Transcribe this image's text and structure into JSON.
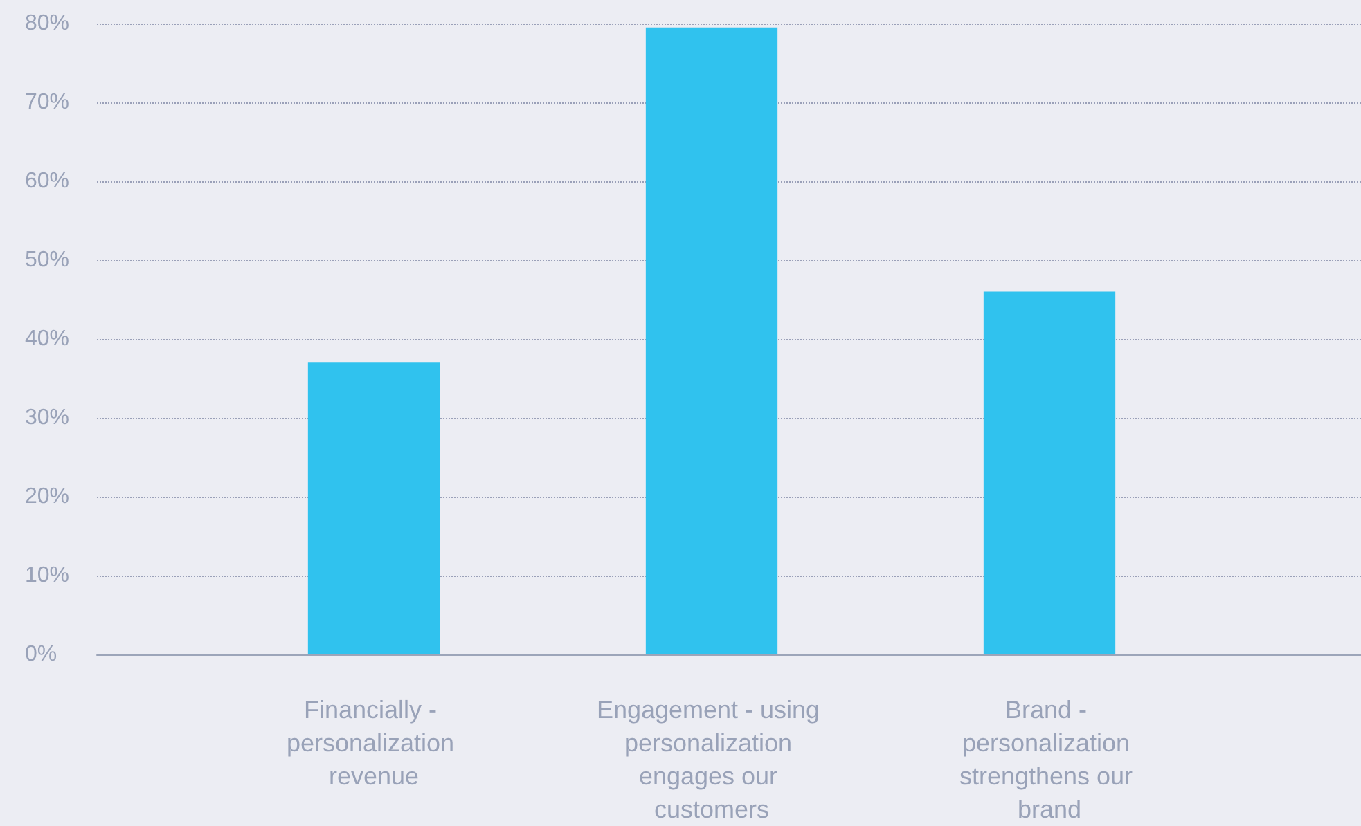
{
  "chart_data": {
    "type": "bar",
    "categories": [
      "Financially - personalization revenue",
      "Engagement - using personalization engages our customers",
      "Brand - personalization strengthens our brand"
    ],
    "values": [
      37,
      79.5,
      46
    ],
    "color": "#30c2ee",
    "ylim": [
      0,
      80
    ],
    "yticks": [
      {
        "value": 0,
        "label": "0%"
      },
      {
        "value": 10,
        "label": "10%"
      },
      {
        "value": 20,
        "label": "20%"
      },
      {
        "value": 30,
        "label": "30%"
      },
      {
        "value": 40,
        "label": "40%"
      },
      {
        "value": 50,
        "label": "50%"
      },
      {
        "value": 60,
        "label": "60%"
      },
      {
        "value": 70,
        "label": "70%"
      },
      {
        "value": 80,
        "label": "80%"
      }
    ],
    "grid": "y"
  }
}
